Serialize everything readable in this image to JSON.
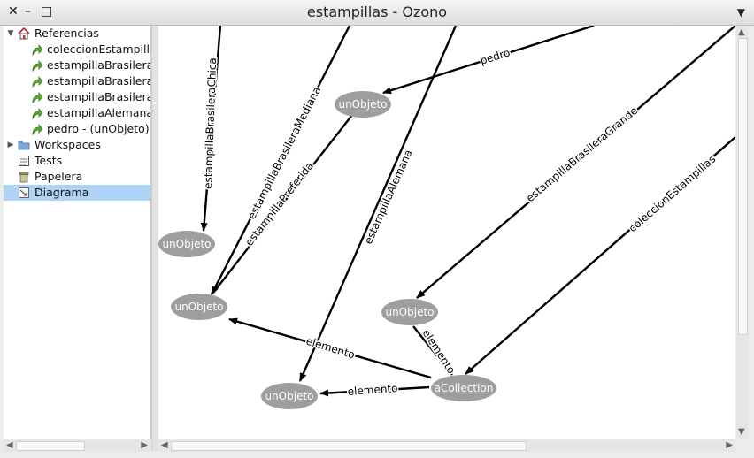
{
  "window": {
    "title": "estampillas - Ozono",
    "close_glyph": "✕",
    "minimize_glyph": "–",
    "maximize_glyph": "□",
    "menu_glyph": "▼"
  },
  "tree": {
    "items": [
      {
        "label": "Referencias",
        "icon": "house-icon",
        "expander": "▼"
      },
      {
        "label": "coleccionEstampillas",
        "icon": "green-arrow-icon"
      },
      {
        "label": "estampillaBrasileraChica",
        "icon": "green-arrow-icon"
      },
      {
        "label": "estampillaBrasileraGrande",
        "icon": "green-arrow-icon"
      },
      {
        "label": "estampillaBrasileraMediana",
        "icon": "green-arrow-icon"
      },
      {
        "label": "estampillaAlemana",
        "icon": "green-arrow-icon"
      },
      {
        "label": "pedro - (unObjeto)",
        "icon": "green-arrow-icon"
      },
      {
        "label": "Workspaces",
        "icon": "folder-icon",
        "expander": "▶"
      },
      {
        "label": "Tests",
        "icon": "tests-icon"
      },
      {
        "label": "Papelera",
        "icon": "trash-icon"
      },
      {
        "label": "Diagrama",
        "icon": "diagram-icon",
        "selected": true
      }
    ]
  },
  "diagram": {
    "nodes": [
      {
        "id": "n1",
        "label": "unObjeto"
      },
      {
        "id": "n2",
        "label": "unObjeto"
      },
      {
        "id": "n3",
        "label": "unObjeto"
      },
      {
        "id": "n4",
        "label": "unObjeto"
      },
      {
        "id": "n5",
        "label": "unObjeto"
      },
      {
        "id": "n6",
        "label": "aCollection"
      }
    ],
    "edges": [
      {
        "label": "estampillaBrasileraChica"
      },
      {
        "label": "estampillaBrasileraMediana"
      },
      {
        "label": "estampillaPreferida"
      },
      {
        "label": "pedro"
      },
      {
        "label": "estampillaAlemana"
      },
      {
        "label": "estampillaBrasileraGrande"
      },
      {
        "label": "coleccionEstampillas"
      },
      {
        "label": "elemento"
      },
      {
        "label": "elemento"
      },
      {
        "label": "elemento"
      }
    ]
  },
  "scrollbars": {
    "left": "◀",
    "right": "▶",
    "up": "▲",
    "down": "▼"
  },
  "colors": {
    "node_fill": "#9e9e9e",
    "node_text": "#ffffff",
    "edge": "#000000",
    "selection": "#aed3f7"
  }
}
